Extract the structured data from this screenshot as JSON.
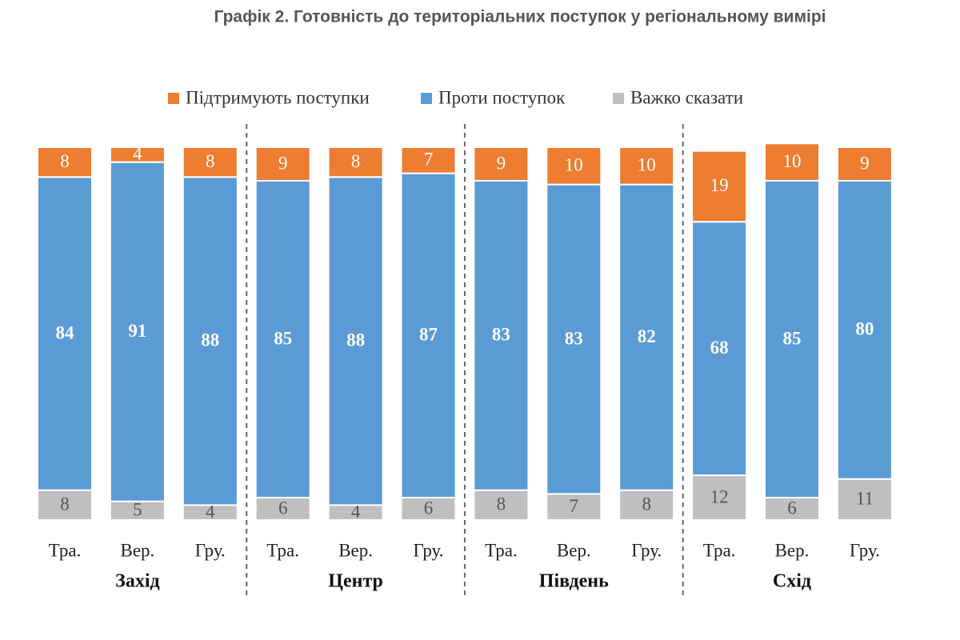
{
  "chart_data": {
    "type": "stacked-bar",
    "title": "Графік 2. Готовність до територіальних поступок у регіональному вимірі",
    "categories": [
      "Тра.",
      "Вер.",
      "Гру.",
      "Тра.",
      "Вер.",
      "Гру.",
      "Тра.",
      "Вер.",
      "Гру.",
      "Тра.",
      "Вер.",
      "Гру."
    ],
    "groups": [
      "Захід",
      "Центр",
      "Південь",
      "Схід"
    ],
    "series": [
      {
        "name": "Підтримують поступки",
        "color": "#ED7D31",
        "values": [
          8,
          4,
          8,
          9,
          8,
          7,
          9,
          10,
          10,
          19,
          10,
          9
        ]
      },
      {
        "name": "Проти поступок",
        "color": "#5B9BD5",
        "values": [
          84,
          91,
          88,
          85,
          88,
          87,
          83,
          83,
          82,
          68,
          85,
          80
        ]
      },
      {
        "name": "Важко сказати",
        "color": "#BFBFBF",
        "values": [
          8,
          5,
          4,
          6,
          4,
          6,
          8,
          7,
          8,
          12,
          6,
          11
        ]
      }
    ]
  }
}
